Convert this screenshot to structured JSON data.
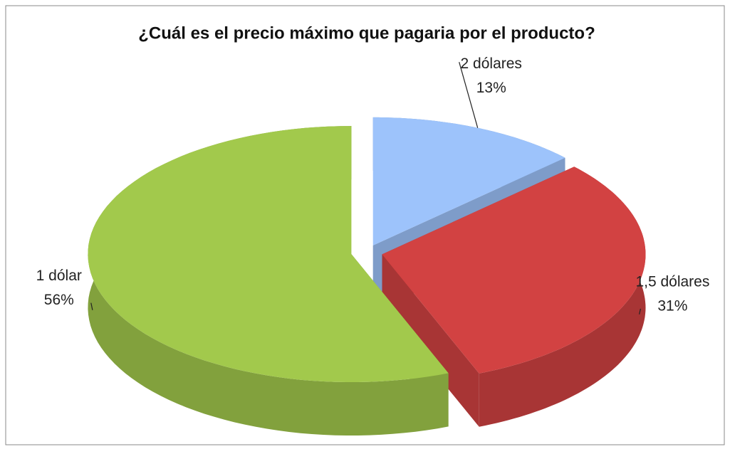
{
  "chart_data": {
    "type": "pie",
    "title": "¿Cuál es el precio máximo que pagaria por el producto?",
    "categories": [
      "2 dólares",
      "1,5 dólares",
      "1 dólar"
    ],
    "values": [
      13,
      31,
      56
    ],
    "value_labels": [
      "13%",
      "31%",
      "56%"
    ],
    "colors": [
      "#9dc3fb",
      "#d24242",
      "#a2c94c"
    ]
  }
}
